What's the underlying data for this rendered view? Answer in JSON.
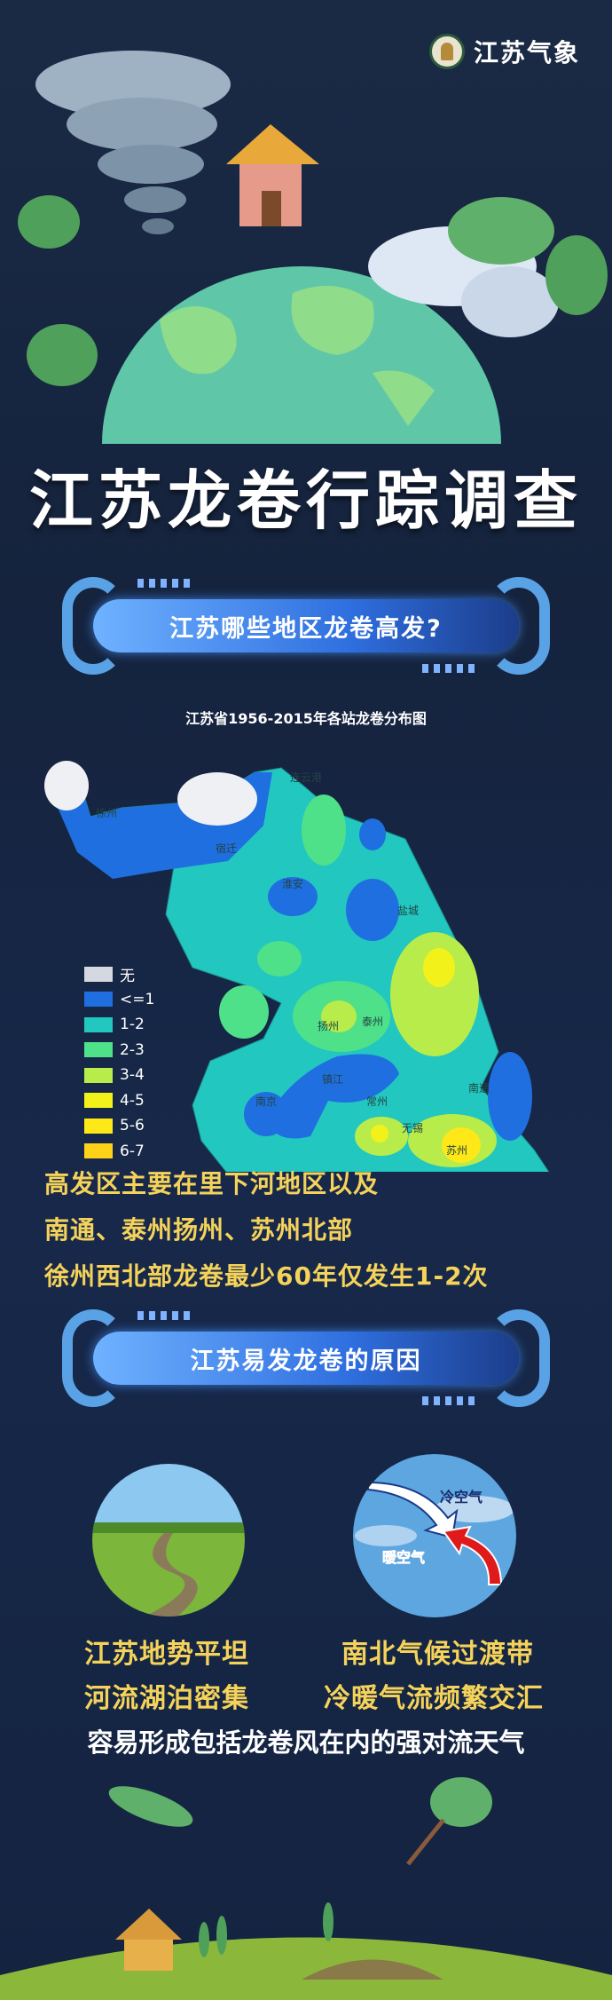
{
  "brand": {
    "name": "江苏气象"
  },
  "title": "江苏龙卷行踪调查",
  "section1": {
    "heading": "江苏哪些地区龙卷高发?",
    "map_title": "江苏省1956-2015年各站龙卷分布图",
    "map_cities": [
      "连云港",
      "徐州",
      "宿迁",
      "淮安",
      "盐城",
      "扬州",
      "泰州",
      "镇江",
      "南京",
      "常州",
      "无锡",
      "南通",
      "苏州"
    ],
    "legend": [
      {
        "label": "无",
        "color": "#d4d8e0"
      },
      {
        "label": "<=1",
        "color": "#1f6fe0"
      },
      {
        "label": "1-2",
        "color": "#22c7c0"
      },
      {
        "label": "2-3",
        "color": "#4fe08a"
      },
      {
        "label": "3-4",
        "color": "#b8ec4a"
      },
      {
        "label": "4-5",
        "color": "#f2f21a"
      },
      {
        "label": "5-6",
        "color": "#ffe818"
      },
      {
        "label": "6-7",
        "color": "#ffd21a"
      }
    ],
    "notes": [
      "高发区主要在里下河地区以及",
      "南通、泰州扬州、苏州北部",
      "徐州西北部龙卷最少60年仅发生1-2次"
    ]
  },
  "section2": {
    "heading": "江苏易发龙卷的原因",
    "air_labels": {
      "cold": "冷空气",
      "warm": "暖空气"
    },
    "left_lines": [
      "江苏地势平坦",
      "河流湖泊密集"
    ],
    "right_lines": [
      "南北气候过渡带",
      "冷暖气流频繁交汇"
    ],
    "conclusion": "容易形成包括龙卷风在内的强对流天气"
  }
}
